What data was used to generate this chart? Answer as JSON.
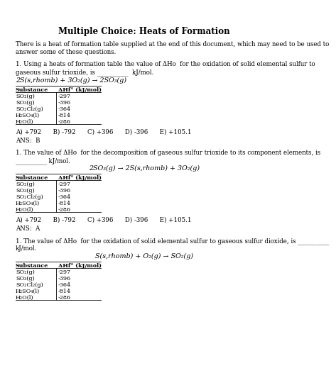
{
  "title": "Multiple Choice: Heats of Formation",
  "intro_line1": "There is a heat of formation table supplied at the end of this document, which may need to be used to",
  "intro_line2": "answer some of these questions.",
  "bg_color": "#ffffff",
  "text_color": "#000000",
  "table_rows": [
    [
      "SO₂(g)",
      "-297"
    ],
    [
      "SO₃(g)",
      "-396"
    ],
    [
      "SO₂Cl₂(g)",
      "-364"
    ],
    [
      "H₂SO₄(l)",
      "-814"
    ],
    [
      "H₂O(l)",
      "-286"
    ]
  ],
  "table_header": [
    "Substance",
    "ΔHf° (kJ/mol)"
  ],
  "choices": "A) +792      B) -792      C) +396      D) -396      E) +105.1",
  "q1_line1": "1. Using a heats of formation table the value of ΔHᴏ  for the oxidation of solid elemental sulfur to",
  "q1_line2": "gaseous sulfur trioxide, is __________  kJ/mol.",
  "q1_eq": "2S(s,rhomb) + 3O₂(g) → 2SO₃(g)",
  "q1_ans": "ANS:  B",
  "q2_line1": "1. The value of ΔHᴏ  for the decomposition of gaseous sulfur trioxide to its component elements, is",
  "q2_line2": "__________ kJ/mol.",
  "q2_eq": "2SO₃(g) → 2S(s,rhomb) + 3O₂(g)",
  "q2_ans": "ANS:  A",
  "q3_line1": "1. The value of ΔHᴏ  for the oxidation of solid elemental sulfur to gaseous sulfur dioxide, is __________",
  "q3_line2": "kJ/mol.",
  "q3_eq": "S(s,rhomb) + O₂(g) → SO₂(g)"
}
